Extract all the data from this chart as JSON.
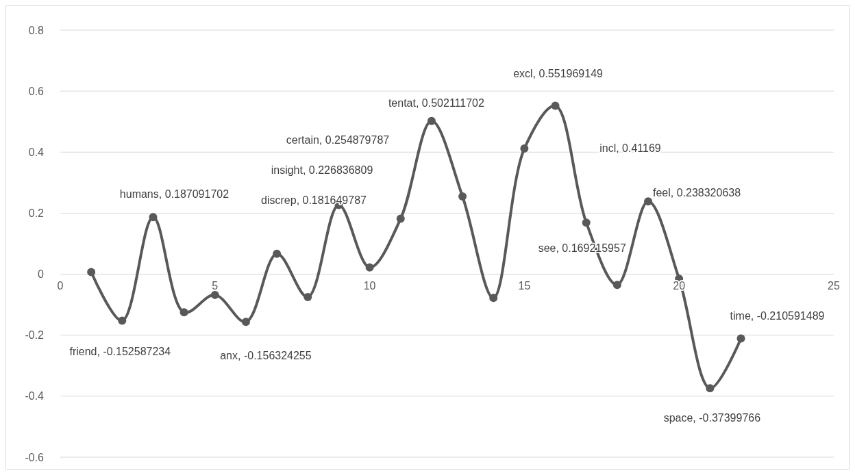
{
  "chart_data": {
    "type": "line",
    "x": [
      1,
      2,
      3,
      4,
      5,
      6,
      7,
      8,
      9,
      10,
      11,
      12,
      13,
      14,
      15,
      16,
      17,
      18,
      19,
      20,
      21,
      22
    ],
    "series": [
      {
        "color": "#595959",
        "values": [
          0.007,
          -0.152587234,
          0.187091702,
          -0.125,
          -0.068,
          -0.156324255,
          0.067,
          -0.075,
          0.226836809,
          0.022,
          0.181649787,
          0.502111702,
          0.254879787,
          -0.078,
          0.41169,
          0.551969149,
          0.169215957,
          -0.035,
          0.238320638,
          -0.015,
          -0.37399766,
          -0.210591489
        ]
      }
    ],
    "xlim": [
      0,
      25
    ],
    "xticks": [
      0,
      5,
      10,
      15,
      20,
      25
    ],
    "ylim": [
      -0.6,
      0.8
    ],
    "yticks": [
      -0.6,
      -0.4,
      -0.2,
      0,
      0.2,
      0.4,
      0.6,
      0.8
    ],
    "grid": "y",
    "marker": "circle",
    "line_style": "solid",
    "annotations": [
      {
        "text": "friend, -0.152587234",
        "x": 2,
        "y": -0.152587234
      },
      {
        "text": "humans, 0.187091702",
        "x": 3,
        "y": 0.187091702
      },
      {
        "text": "anx, -0.156324255",
        "x": 6,
        "y": -0.156324255
      },
      "insight, 0.226836809",
      "discrep, 0.181649787",
      {
        "text": "tentat, 0.502111702",
        "x": 12,
        "y": 0.502111702
      },
      "certain, 0.254879787",
      "incl, 0.41169",
      {
        "text": "excl, 0.551969149",
        "x": 16,
        "y": 0.551969149
      },
      {
        "text": "see, 0.169215957",
        "x": 17,
        "y": 0.169215957
      },
      {
        "text": "feel, 0.238320638",
        "x": 19,
        "y": 0.238320638
      },
      {
        "text": "space, -0.37399766",
        "x": 21,
        "y": -0.37399766
      },
      {
        "text": "time, -0.210591489",
        "x": 22,
        "y": -0.210591489
      }
    ]
  }
}
